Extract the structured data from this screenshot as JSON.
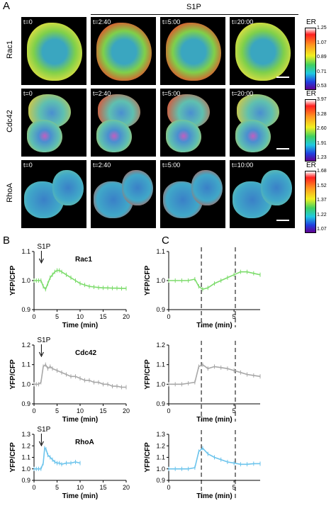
{
  "panels": {
    "a": "A",
    "b": "B",
    "c": "C"
  },
  "panel_a": {
    "s1p_label": "S1P",
    "colorbar_title": "ER",
    "rows": [
      {
        "name": "Rac1",
        "times": [
          "t=0",
          "t=2:40",
          "t=5:00",
          "t=20:00"
        ],
        "ticks": [
          "1.25",
          "1.07",
          "0.89",
          "0.71",
          "0.53"
        ],
        "colors": {
          "edge": "#e8e040",
          "mid": "#7fd04a",
          "core": "#3aa6c0"
        }
      },
      {
        "name": "Cdc42",
        "times": [
          "t=0",
          "t=2:40",
          "t=5:00",
          "t=20:00"
        ],
        "ticks": [
          "3.97",
          "3.28",
          "2.60",
          "1.91",
          "1.23"
        ],
        "colors": {
          "edge": "#e0c838",
          "mid": "#5fc0b0",
          "core": "#4a8fd0"
        }
      },
      {
        "name": "RhoA",
        "times": [
          "t=0",
          "t=2:40",
          "t=5:00",
          "t=10:00"
        ],
        "ticks": [
          "1.68",
          "1.52",
          "1.37",
          "1.22",
          "1.07"
        ],
        "colors": {
          "edge": "#78c8a0",
          "mid": "#40a8c8",
          "core": "#3a80c8"
        }
      }
    ]
  },
  "chart_data": [
    {
      "id": "B-Rac1",
      "type": "line",
      "panel": "B",
      "label": "Rac1",
      "arrow_label": "S1P",
      "color": "#7ddc6c",
      "xlabel": "Time (min)",
      "ylabel": "YFP/CFP",
      "xlim": [
        0,
        20
      ],
      "ylim": [
        0.9,
        1.1
      ],
      "xticks": [
        0,
        5,
        10,
        15,
        20
      ],
      "yticks": [
        0.9,
        1.0,
        1.1
      ],
      "ytick_labels": [
        "0.9",
        "1.0",
        "1.1"
      ],
      "stim_time": 1.6,
      "x": [
        0,
        0.5,
        1,
        1.5,
        2,
        2.5,
        3,
        3.5,
        4,
        4.5,
        5,
        5.5,
        6,
        7,
        8,
        9,
        10,
        11,
        12,
        13,
        14,
        15,
        16,
        17,
        18,
        19,
        20
      ],
      "y": [
        1.0,
        1.0,
        1.0,
        1.0,
        0.98,
        0.97,
        0.99,
        1.01,
        1.02,
        1.03,
        1.035,
        1.035,
        1.03,
        1.02,
        1.01,
        1.0,
        0.99,
        0.985,
        0.98,
        0.978,
        0.976,
        0.975,
        0.975,
        0.974,
        0.974,
        0.973,
        0.973
      ]
    },
    {
      "id": "B-Cdc42",
      "type": "line",
      "panel": "B",
      "label": "Cdc42",
      "arrow_label": "S1P",
      "color": "#a8a8a8",
      "xlabel": "Time (min)",
      "ylabel": "YFP/CFP",
      "xlim": [
        0,
        20
      ],
      "ylim": [
        0.9,
        1.2
      ],
      "xticks": [
        0,
        5,
        10,
        15,
        20
      ],
      "yticks": [
        0.9,
        1.0,
        1.1,
        1.2
      ],
      "ytick_labels": [
        "0.9",
        "1.0",
        "1.1",
        "1.2"
      ],
      "stim_time": 1.6,
      "x": [
        0,
        0.5,
        1,
        1.5,
        2,
        2.5,
        3,
        3.5,
        4,
        5,
        6,
        7,
        8,
        9,
        10,
        11,
        12,
        13,
        14,
        15,
        16,
        17,
        18,
        19,
        20
      ],
      "y": [
        1.0,
        1.0,
        1.0,
        1.01,
        1.09,
        1.1,
        1.08,
        1.09,
        1.08,
        1.07,
        1.06,
        1.05,
        1.04,
        1.04,
        1.03,
        1.02,
        1.02,
        1.01,
        1.01,
        1.0,
        1.0,
        0.99,
        0.99,
        0.985,
        0.985
      ]
    },
    {
      "id": "B-RhoA",
      "type": "line",
      "panel": "B",
      "label": "RhoA",
      "arrow_label": "S1P",
      "color": "#6cc4ec",
      "xlabel": "Time (min)",
      "ylabel": "YFP/CFP",
      "xlim": [
        0,
        20
      ],
      "ylim": [
        0.9,
        1.3
      ],
      "xticks": [
        0,
        5,
        10,
        15,
        20
      ],
      "yticks": [
        0.9,
        1.0,
        1.1,
        1.2,
        1.3
      ],
      "ytick_labels": [
        "0.9",
        "1.0",
        "1.1",
        "1.2",
        "1.3"
      ],
      "stim_time": 1.6,
      "x": [
        0,
        0.5,
        1,
        1.5,
        2,
        2.3,
        2.6,
        3,
        3.5,
        4,
        4.5,
        5,
        5.5,
        6,
        7,
        8,
        9,
        10
      ],
      "y": [
        1.0,
        1.0,
        1.0,
        1.0,
        1.05,
        1.18,
        1.17,
        1.12,
        1.1,
        1.08,
        1.06,
        1.05,
        1.05,
        1.04,
        1.05,
        1.05,
        1.06,
        1.05
      ]
    },
    {
      "id": "C-Rac1",
      "type": "line",
      "panel": "C",
      "label": "",
      "arrow_label": "",
      "color": "#7ddc6c",
      "xlabel": "Time (min)",
      "ylabel": "YFP/CFP",
      "xlim": [
        0,
        7
      ],
      "ylim": [
        0.9,
        1.1
      ],
      "xticks": [
        0,
        5
      ],
      "yticks": [
        0.9,
        1.0,
        1.1
      ],
      "ytick_labels": [
        "0.9",
        "1.0",
        "1.1"
      ],
      "dashed": [
        2.5,
        5.1
      ],
      "x": [
        0,
        0.5,
        1,
        1.5,
        2,
        2.3,
        2.6,
        3,
        3.5,
        4,
        4.5,
        5,
        5.5,
        6,
        6.5,
        7
      ],
      "y": [
        1.0,
        1.0,
        1.0,
        1.0,
        1.005,
        0.98,
        0.97,
        0.975,
        0.99,
        1.0,
        1.01,
        1.02,
        1.03,
        1.03,
        1.025,
        1.02
      ]
    },
    {
      "id": "C-Cdc42",
      "type": "line",
      "panel": "C",
      "label": "",
      "arrow_label": "",
      "color": "#a8a8a8",
      "xlabel": "Time (min)",
      "ylabel": "YFP/CFP",
      "xlim": [
        0,
        7
      ],
      "ylim": [
        0.9,
        1.2
      ],
      "xticks": [
        0,
        5
      ],
      "yticks": [
        0.9,
        1.0,
        1.1,
        1.2
      ],
      "ytick_labels": [
        "0.9",
        "1.0",
        "1.1",
        "1.2"
      ],
      "dashed": [
        2.5,
        5.1
      ],
      "x": [
        0,
        0.5,
        1,
        1.5,
        2,
        2.3,
        2.6,
        3,
        3.5,
        4,
        4.5,
        5,
        5.5,
        6,
        6.5,
        7
      ],
      "y": [
        1.0,
        1.0,
        1.0,
        1.005,
        1.01,
        1.09,
        1.1,
        1.08,
        1.09,
        1.085,
        1.08,
        1.07,
        1.06,
        1.05,
        1.045,
        1.04
      ]
    },
    {
      "id": "C-RhoA",
      "type": "line",
      "panel": "C",
      "label": "",
      "arrow_label": "",
      "color": "#6cc4ec",
      "xlabel": "Time (min)",
      "ylabel": "YFP/CFP",
      "xlim": [
        0,
        7
      ],
      "ylim": [
        0.9,
        1.3
      ],
      "xticks": [
        0,
        5
      ],
      "yticks": [
        0.9,
        1.0,
        1.1,
        1.2,
        1.3
      ],
      "ytick_labels": [
        "0.9",
        "1.0",
        "1.1",
        "1.2",
        "1.3"
      ],
      "dashed": [
        2.5,
        5.1
      ],
      "x": [
        0,
        0.5,
        1,
        1.5,
        2,
        2.3,
        2.6,
        3,
        3.5,
        4,
        4.5,
        5,
        5.5,
        6,
        6.5,
        7
      ],
      "y": [
        1.0,
        1.0,
        1.0,
        1.0,
        1.01,
        1.15,
        1.18,
        1.13,
        1.1,
        1.08,
        1.06,
        1.05,
        1.04,
        1.04,
        1.045,
        1.045
      ]
    }
  ]
}
